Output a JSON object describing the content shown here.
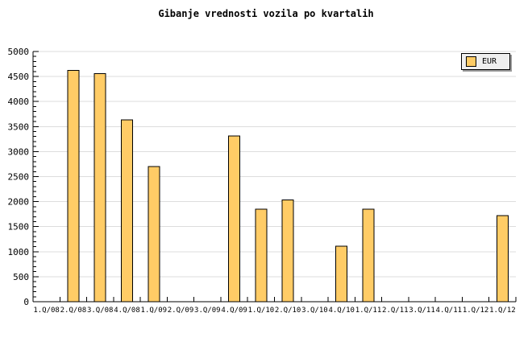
{
  "colors": {
    "background": "#FFFFFF",
    "bar_fill": "#FFCC66",
    "bar_border": "#000000",
    "grid": "#DDDDDD",
    "axis": "#000000",
    "text": "#000000",
    "legend_bg": "#EFEFEF",
    "legend_border": "#000000",
    "legend_shadow": "#999999"
  },
  "chart_data": {
    "type": "bar",
    "title": "Gibanje vrednosti vozila po kvartalih",
    "xlabel": "",
    "ylabel": "",
    "categories": [
      "1.Q/08",
      "2.Q/08",
      "3.Q/08",
      "4.Q/08",
      "1.Q/09",
      "2.Q/09",
      "3.Q/09",
      "4.Q/09",
      "1.Q/10",
      "2.Q/10",
      "3.Q/10",
      "4.Q/10",
      "1.Q/11",
      "2.Q/11",
      "3.Q/11",
      "4.Q/11",
      "1.Q/12",
      "1.Q/12"
    ],
    "series": [
      {
        "name": "EUR",
        "values": [
          null,
          4620,
          4560,
          3630,
          2700,
          null,
          null,
          3310,
          1850,
          2030,
          null,
          1110,
          1850,
          null,
          null,
          null,
          null,
          1720
        ]
      }
    ],
    "ylim": [
      0,
      5000
    ],
    "y_ticks": [
      0,
      500,
      1000,
      1500,
      2000,
      2500,
      3000,
      3500,
      4000,
      4500,
      5000
    ],
    "y_tick_step": 500,
    "y_minor_tick_step": 100,
    "grid": true,
    "legend_position": "top-right"
  }
}
